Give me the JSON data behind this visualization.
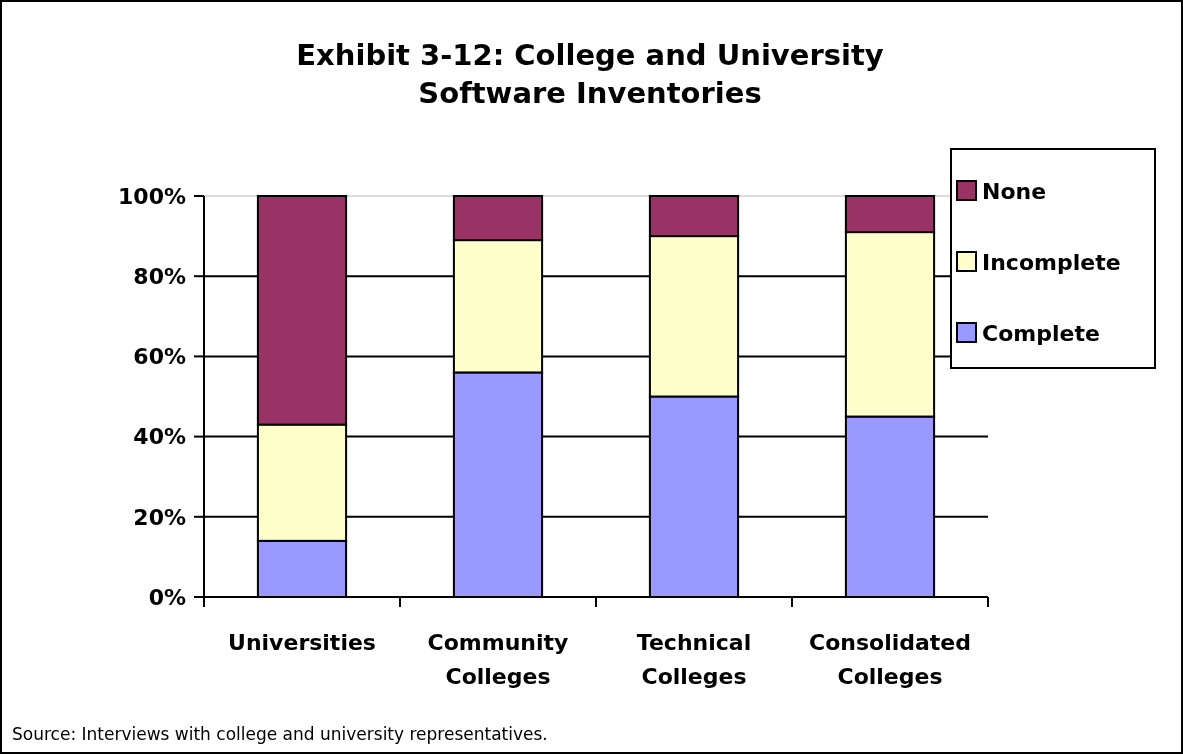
{
  "chart_data": {
    "type": "bar",
    "title": "Exhibit 3-12: College and University\nSoftware Inventories",
    "categories": [
      "Universities",
      "Community\nColleges",
      "Technical\nColleges",
      "Consolidated\nColleges"
    ],
    "stacked": true,
    "series": [
      {
        "name": "Complete",
        "color": "#9999ff",
        "values": [
          14,
          56,
          50,
          45
        ]
      },
      {
        "name": "Incomplete",
        "color": "#ffffcc",
        "values": [
          29,
          33,
          40,
          46
        ]
      },
      {
        "name": "None",
        "color": "#993366",
        "values": [
          57,
          11,
          10,
          9
        ]
      }
    ],
    "ylim": [
      0,
      100
    ],
    "yticks": [
      {
        "value": 0,
        "label": "0%"
      },
      {
        "value": 20,
        "label": "20%"
      },
      {
        "value": 40,
        "label": "40%"
      },
      {
        "value": 60,
        "label": "60%"
      },
      {
        "value": 80,
        "label": "80%"
      },
      {
        "value": 100,
        "label": "100%"
      }
    ],
    "grid": "y",
    "legend": "top right",
    "annotations": [
      "Source: Interviews with college and university representatives."
    ]
  }
}
